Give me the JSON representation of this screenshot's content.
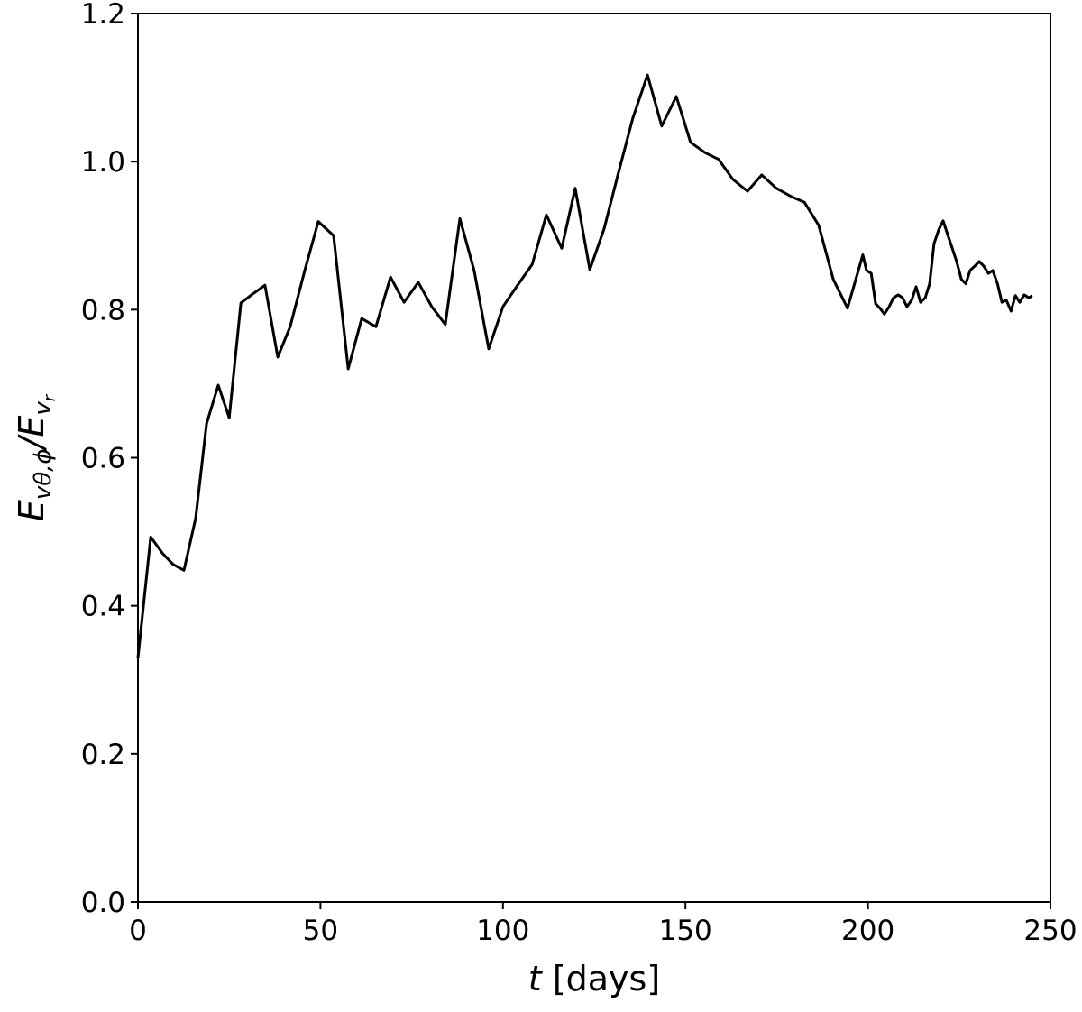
{
  "chart_data": {
    "type": "line",
    "x_label": [
      "t",
      "[days]"
    ],
    "y_label": [
      "E",
      "vθ,ϕ",
      "/E",
      "v",
      "r"
    ],
    "x": [
      0,
      3.5,
      6.7,
      9.6,
      12.6,
      15.8,
      18.8,
      22,
      25,
      28.2,
      31.1,
      34.8,
      38.3,
      41.7,
      45.7,
      49.4,
      53.6,
      57.6,
      61.3,
      65.2,
      69.2,
      72.9,
      76.8,
      80.5,
      84.2,
      88.2,
      92.1,
      96.1,
      100,
      104,
      108,
      111.9,
      116.1,
      119.8,
      123.8,
      127.7,
      131.7,
      135.6,
      139.6,
      143.5,
      147.5,
      151.4,
      155.4,
      159.1,
      163,
      167,
      170.9,
      174.9,
      178.9,
      182.6,
      186.5,
      190.5,
      194.4,
      198.6,
      199.6,
      200.9,
      202.1,
      203.3,
      204.5,
      205.8,
      207,
      208.3,
      209.5,
      210.7,
      212,
      213.2,
      214.4,
      215.7,
      216.9,
      218.1,
      219.4,
      220.6,
      221.8,
      223.1,
      224.3,
      225.6,
      226.8,
      228,
      229.3,
      230.5,
      231.7,
      233,
      234.2,
      235.5,
      236.7,
      237.9,
      239.2,
      240.4,
      241.6,
      242.8,
      244.1,
      245
    ],
    "values": [
      0.33,
      0.493,
      0.471,
      0.456,
      0.448,
      0.518,
      0.646,
      0.698,
      0.654,
      0.809,
      0.82,
      0.833,
      0.736,
      0.777,
      0.853,
      0.919,
      0.9,
      0.72,
      0.788,
      0.777,
      0.844,
      0.81,
      0.837,
      0.804,
      0.78,
      0.923,
      0.853,
      0.747,
      0.804,
      0.833,
      0.861,
      0.928,
      0.883,
      0.964,
      0.854,
      0.909,
      0.986,
      1.059,
      1.117,
      1.048,
      1.088,
      1.026,
      1.012,
      1.003,
      0.976,
      0.96,
      0.982,
      0.964,
      0.953,
      0.945,
      0.914,
      0.841,
      0.802,
      0.874,
      0.853,
      0.849,
      0.808,
      0.802,
      0.794,
      0.804,
      0.816,
      0.82,
      0.816,
      0.804,
      0.813,
      0.831,
      0.81,
      0.816,
      0.835,
      0.889,
      0.908,
      0.92,
      0.902,
      0.883,
      0.865,
      0.841,
      0.835,
      0.853,
      0.859,
      0.865,
      0.859,
      0.849,
      0.853,
      0.835,
      0.81,
      0.813,
      0.798,
      0.819,
      0.81,
      0.82,
      0.816,
      0.819
    ],
    "color": "#000000",
    "xlim": [
      0,
      250
    ],
    "xticks": [
      0,
      50,
      100,
      150,
      200,
      250
    ],
    "ylim": [
      0,
      1.2
    ],
    "yticks": [
      {
        "value": 0,
        "label": "0.0"
      },
      0.2,
      0.4,
      0.6,
      0.8,
      {
        "value": 1,
        "label": "1.0"
      },
      1.2
    ]
  }
}
